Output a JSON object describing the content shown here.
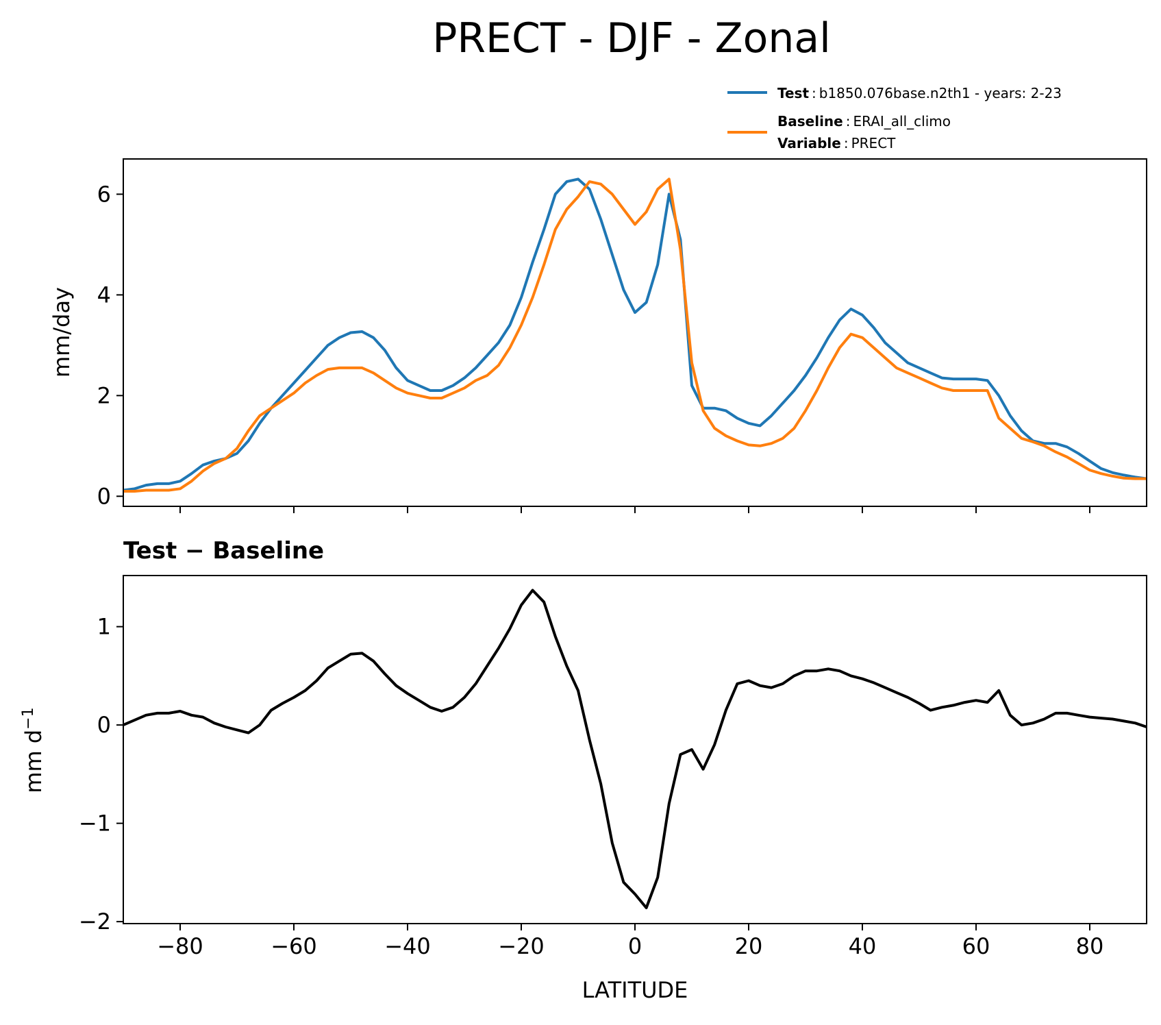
{
  "chart_data": [
    {
      "type": "line",
      "title": "PRECT - DJF - Zonal",
      "xlabel": "",
      "ylabel": "mm/day",
      "xlim": [
        -90,
        90
      ],
      "ylim": [
        -0.2,
        6.7
      ],
      "xticks": [
        -80,
        -60,
        -40,
        -20,
        0,
        20,
        40,
        60,
        80
      ],
      "yticks": [
        0,
        2,
        4,
        6
      ],
      "ytick_labels": [
        "0",
        "2",
        "4",
        "6"
      ],
      "grid": false,
      "legend": {
        "placement": "above-right",
        "entries": [
          {
            "bold": "Test",
            "sep": ":",
            "text": "b1850.076base.n2th1 - years: 2-23",
            "color": "#1f77b4"
          },
          {
            "bold": "Baseline",
            "sep": ":",
            "text": "ERAI_all_climo",
            "color": "#ff7f0e"
          },
          {
            "bold": "Variable",
            "sep": ":",
            "text": "PRECT"
          }
        ]
      },
      "x": [
        -90,
        -88,
        -86,
        -84,
        -82,
        -80,
        -78,
        -76,
        -74,
        -72,
        -70,
        -68,
        -66,
        -64,
        -62,
        -60,
        -58,
        -56,
        -54,
        -52,
        -50,
        -48,
        -46,
        -44,
        -42,
        -40,
        -38,
        -36,
        -34,
        -32,
        -30,
        -28,
        -26,
        -24,
        -22,
        -20,
        -18,
        -16,
        -14,
        -12,
        -10,
        -8,
        -6,
        -4,
        -2,
        0,
        2,
        4,
        6,
        8,
        10,
        12,
        14,
        16,
        18,
        20,
        22,
        24,
        26,
        28,
        30,
        32,
        34,
        36,
        38,
        40,
        42,
        44,
        46,
        48,
        50,
        52,
        54,
        56,
        58,
        60,
        62,
        64,
        66,
        68,
        70,
        72,
        74,
        76,
        78,
        80,
        82,
        84,
        86,
        88,
        90
      ],
      "series": [
        {
          "name": "Test",
          "color": "#1f77b4",
          "values": [
            0.12,
            0.15,
            0.22,
            0.25,
            0.25,
            0.3,
            0.45,
            0.62,
            0.7,
            0.75,
            0.85,
            1.1,
            1.45,
            1.75,
            2.0,
            2.25,
            2.5,
            2.75,
            3.0,
            3.15,
            3.25,
            3.27,
            3.15,
            2.9,
            2.55,
            2.3,
            2.2,
            2.1,
            2.1,
            2.2,
            2.35,
            2.55,
            2.8,
            3.05,
            3.4,
            3.95,
            4.65,
            5.3,
            6.0,
            6.25,
            6.3,
            6.1,
            5.5,
            4.8,
            4.1,
            3.65,
            3.85,
            4.6,
            6.0,
            5.1,
            2.2,
            1.75,
            1.75,
            1.7,
            1.55,
            1.45,
            1.4,
            1.6,
            1.85,
            2.1,
            2.4,
            2.75,
            3.15,
            3.5,
            3.72,
            3.6,
            3.35,
            3.05,
            2.85,
            2.65,
            2.55,
            2.45,
            2.35,
            2.33,
            2.33,
            2.33,
            2.3,
            2.0,
            1.6,
            1.3,
            1.1,
            1.05,
            1.05,
            0.98,
            0.85,
            0.7,
            0.55,
            0.47,
            0.42,
            0.38,
            0.35
          ]
        },
        {
          "name": "Baseline",
          "color": "#ff7f0e",
          "values": [
            0.1,
            0.1,
            0.12,
            0.12,
            0.12,
            0.15,
            0.3,
            0.5,
            0.65,
            0.75,
            0.95,
            1.3,
            1.6,
            1.75,
            1.9,
            2.05,
            2.25,
            2.4,
            2.52,
            2.55,
            2.55,
            2.55,
            2.45,
            2.3,
            2.15,
            2.05,
            2.0,
            1.95,
            1.95,
            2.05,
            2.15,
            2.3,
            2.4,
            2.6,
            2.95,
            3.4,
            3.95,
            4.6,
            5.3,
            5.7,
            5.95,
            6.25,
            6.2,
            6.0,
            5.7,
            5.4,
            5.65,
            6.1,
            6.3,
            4.9,
            2.65,
            1.7,
            1.35,
            1.2,
            1.1,
            1.02,
            1.0,
            1.05,
            1.15,
            1.35,
            1.7,
            2.1,
            2.55,
            2.95,
            3.22,
            3.15,
            2.95,
            2.75,
            2.55,
            2.45,
            2.35,
            2.25,
            2.15,
            2.1,
            2.1,
            2.1,
            2.1,
            1.55,
            1.35,
            1.15,
            1.08,
            1.0,
            0.88,
            0.78,
            0.65,
            0.52,
            0.45,
            0.4,
            0.36,
            0.35,
            0.35
          ]
        }
      ]
    },
    {
      "type": "line",
      "title": "Test − Baseline",
      "xlabel": "LATITUDE",
      "ylabel": "mm d",
      "ylabel_sup": "−1",
      "xlim": [
        -90,
        90
      ],
      "ylim": [
        -2.02,
        1.52
      ],
      "xticks": [
        -80,
        -60,
        -40,
        -20,
        0,
        20,
        40,
        60,
        80
      ],
      "xtick_labels": [
        "−80",
        "−60",
        "−40",
        "−20",
        "0",
        "20",
        "40",
        "60",
        "80"
      ],
      "yticks": [
        -2,
        -1,
        0,
        1
      ],
      "ytick_labels": [
        "−2",
        "−1",
        "0",
        "1"
      ],
      "grid": false,
      "x": [
        -90,
        -88,
        -86,
        -84,
        -82,
        -80,
        -78,
        -76,
        -74,
        -72,
        -70,
        -68,
        -66,
        -64,
        -62,
        -60,
        -58,
        -56,
        -54,
        -52,
        -50,
        -48,
        -46,
        -44,
        -42,
        -40,
        -38,
        -36,
        -34,
        -32,
        -30,
        -28,
        -26,
        -24,
        -22,
        -20,
        -18,
        -16,
        -14,
        -12,
        -10,
        -8,
        -6,
        -4,
        -2,
        0,
        2,
        4,
        6,
        8,
        10,
        12,
        14,
        16,
        18,
        20,
        22,
        24,
        26,
        28,
        30,
        32,
        34,
        36,
        38,
        40,
        42,
        44,
        46,
        48,
        50,
        52,
        54,
        56,
        58,
        60,
        62,
        64,
        66,
        68,
        70,
        72,
        74,
        76,
        78,
        80,
        82,
        84,
        86,
        88,
        90
      ],
      "series": [
        {
          "name": "",
          "color": "#000000",
          "values": [
            0.0,
            0.05,
            0.1,
            0.12,
            0.12,
            0.14,
            0.1,
            0.08,
            0.02,
            -0.02,
            -0.05,
            -0.08,
            0.0,
            0.15,
            0.22,
            0.28,
            0.35,
            0.45,
            0.58,
            0.65,
            0.72,
            0.73,
            0.65,
            0.52,
            0.4,
            0.32,
            0.25,
            0.18,
            0.14,
            0.18,
            0.28,
            0.42,
            0.6,
            0.78,
            0.98,
            1.22,
            1.37,
            1.25,
            0.9,
            0.6,
            0.35,
            -0.15,
            -0.6,
            -1.2,
            -1.6,
            -1.72,
            -1.86,
            -1.55,
            -0.8,
            -0.3,
            -0.25,
            -0.45,
            -0.2,
            0.15,
            0.42,
            0.45,
            0.4,
            0.38,
            0.42,
            0.5,
            0.55,
            0.55,
            0.57,
            0.55,
            0.5,
            0.47,
            0.43,
            0.38,
            0.33,
            0.28,
            0.22,
            0.15,
            0.18,
            0.2,
            0.23,
            0.25,
            0.23,
            0.35,
            0.1,
            0.0,
            0.02,
            0.06,
            0.12,
            0.12,
            0.1,
            0.08,
            0.07,
            0.06,
            0.04,
            0.02,
            -0.02
          ]
        }
      ]
    }
  ]
}
